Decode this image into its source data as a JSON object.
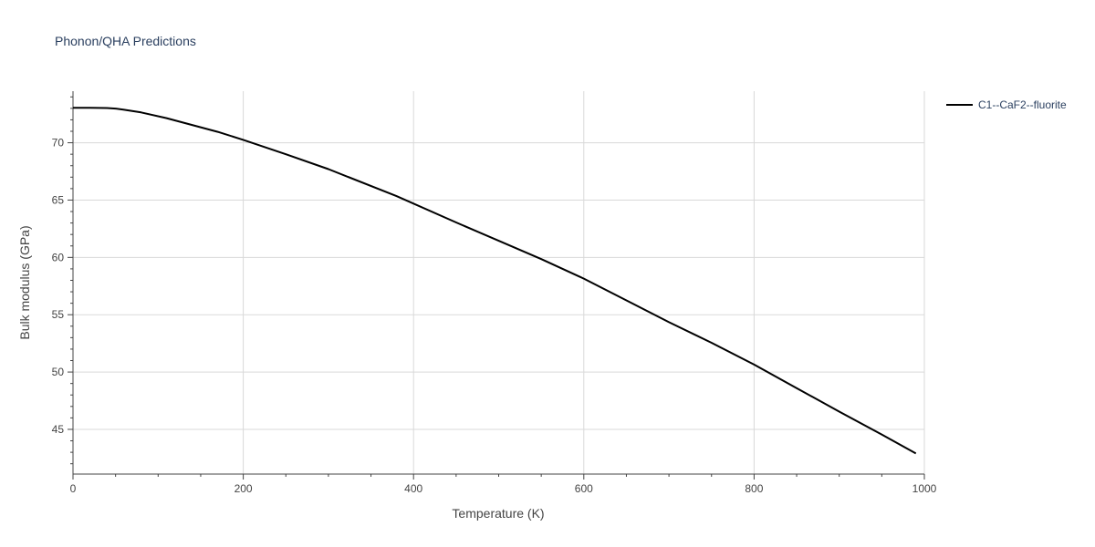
{
  "chart_data": {
    "type": "line",
    "title": "Phonon/QHA Predictions",
    "xlabel": "Temperature (K)",
    "ylabel": "Bulk modulus (GPa)",
    "xlim": [
      0,
      1000
    ],
    "ylim": [
      41.1,
      74.5
    ],
    "xticks": [
      0,
      200,
      400,
      600,
      800,
      1000
    ],
    "yticks": [
      45,
      50,
      55,
      60,
      65,
      70
    ],
    "grid": true,
    "legend_position": "top-right",
    "series": [
      {
        "name": "C1--CaF2--fluorite",
        "color": "#000000",
        "x": [
          0,
          20,
          40,
          50,
          60,
          80,
          110,
          140,
          170,
          200,
          250,
          300,
          380,
          450,
          500,
          550,
          600,
          650,
          700,
          750,
          800,
          850,
          900,
          950,
          990
        ],
        "y": [
          73.05,
          73.05,
          73.03,
          72.98,
          72.88,
          72.65,
          72.15,
          71.55,
          70.95,
          70.25,
          69.0,
          67.7,
          65.35,
          63.05,
          61.45,
          59.85,
          58.15,
          56.25,
          54.35,
          52.55,
          50.65,
          48.6,
          46.55,
          44.55,
          42.9
        ]
      }
    ]
  }
}
